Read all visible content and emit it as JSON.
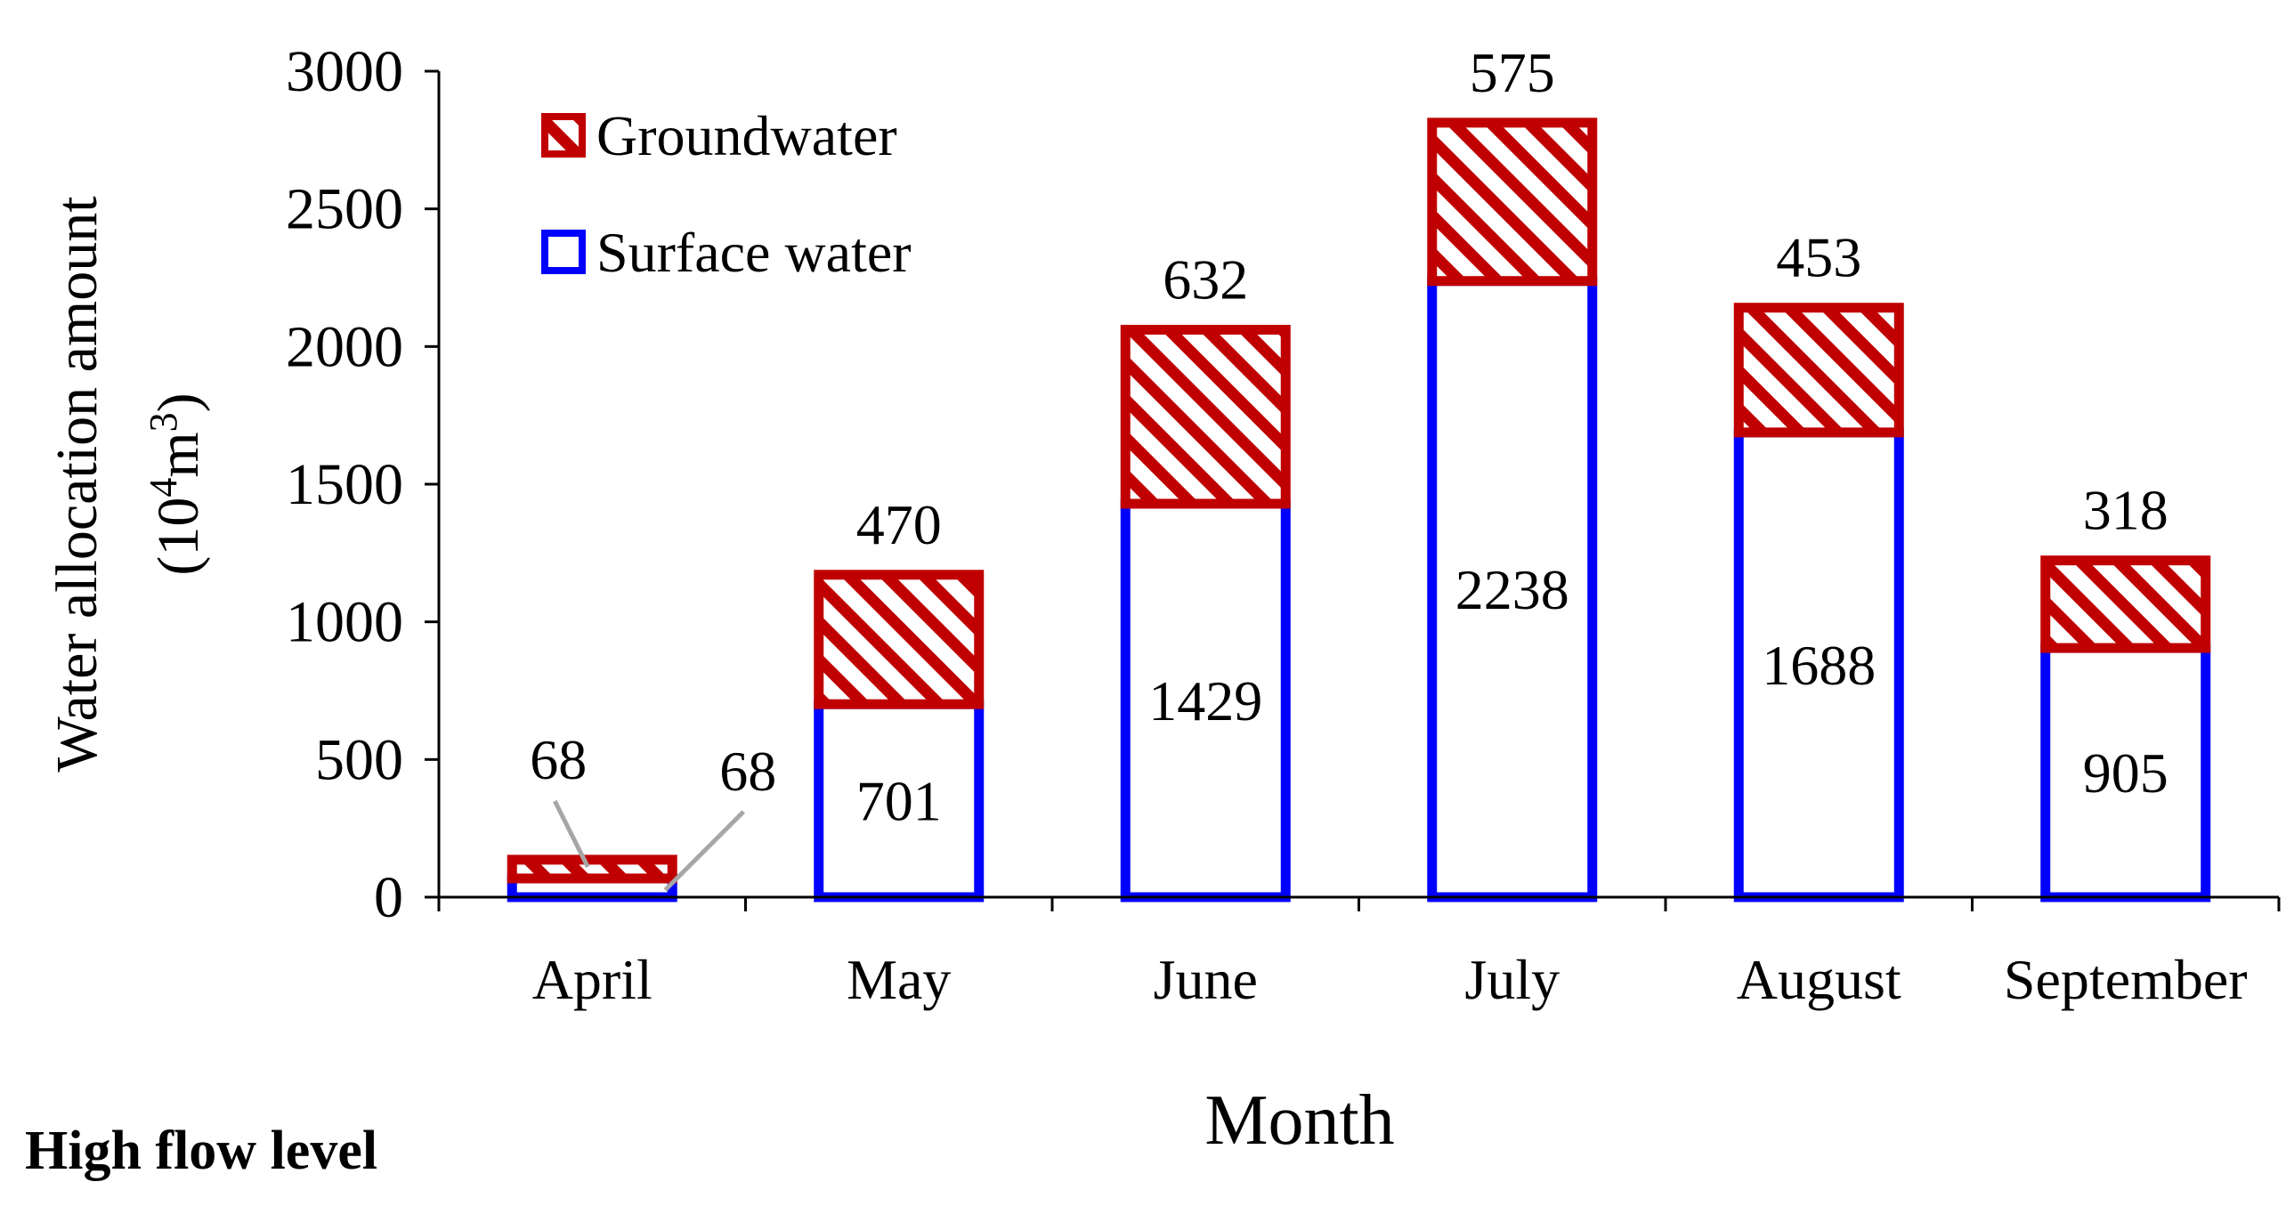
{
  "colors": {
    "groundwater": "#c00000",
    "surface": "#0000ff",
    "axis": "#000000",
    "leader": "#a6a6a6"
  },
  "chart_data": {
    "type": "bar",
    "stacked": true,
    "categories": [
      "April",
      "May",
      "June",
      "July",
      "August",
      "September"
    ],
    "series": [
      {
        "name": "Surface water",
        "values": [
          68,
          701,
          1429,
          2238,
          1688,
          905
        ]
      },
      {
        "name": "Groundwater",
        "values": [
          68,
          470,
          632,
          575,
          453,
          318
        ]
      }
    ],
    "title": "",
    "xlabel": "Month",
    "ylabel": "Water allocation amount",
    "ylabel_unit": {
      "open": "(10",
      "sup1": "4",
      "mid": "m",
      "sup2": "3",
      "close": ")"
    },
    "ylim": [
      0,
      3000
    ],
    "yticks": [
      0,
      500,
      1000,
      1500,
      2000,
      2500,
      3000
    ],
    "legend": {
      "placement": "top-left",
      "order": [
        "Groundwater",
        "Surface water"
      ]
    },
    "grid": false
  },
  "panel_label": "High flow level"
}
